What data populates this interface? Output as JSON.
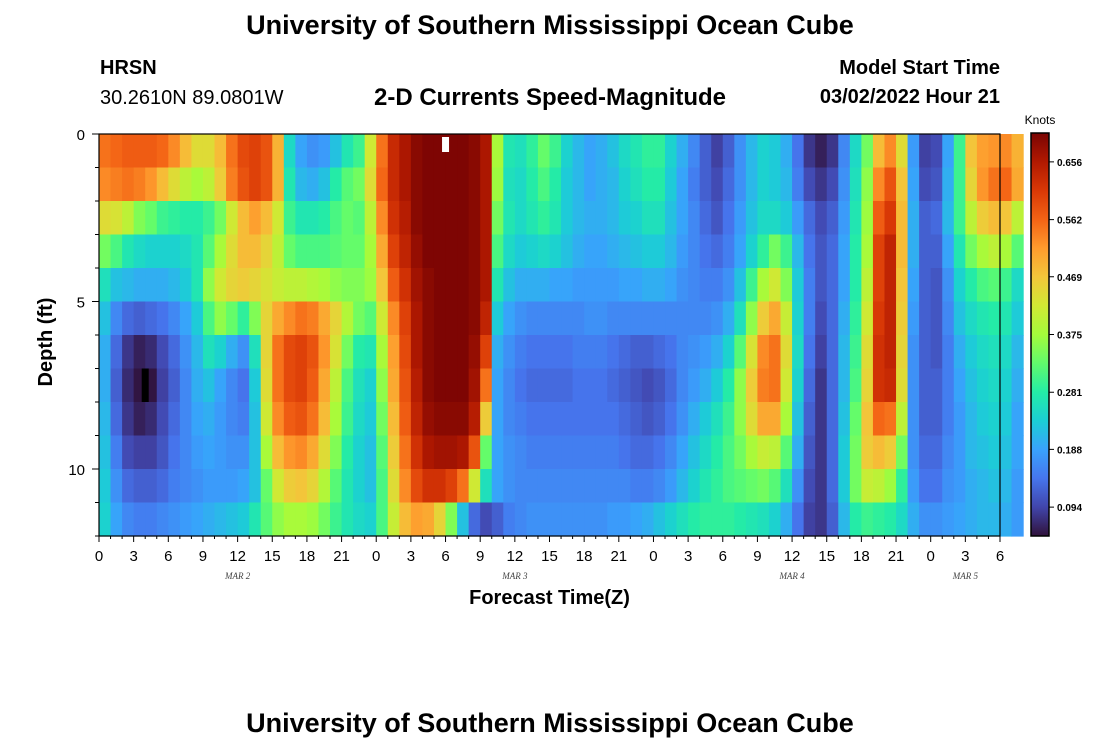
{
  "header": {
    "title": "University of Southern Mississippi Ocean Cube",
    "station": "HRSN",
    "coordinates": "30.2610N  89.0801W",
    "subtitle": "2-D Currents Speed-Magnitude",
    "model_start_label": "Model Start Time",
    "model_start_value": "03/02/2022 Hour 21"
  },
  "footer": {
    "title": "University of Southern Mississippi Ocean Cube"
  },
  "chart_data": {
    "type": "heatmap",
    "xlabel": "Forecast Time(Z)",
    "ylabel": "Depth (ft)",
    "x_tick_labels": [
      "0",
      "3",
      "6",
      "9",
      "12",
      "15",
      "18",
      "21",
      "0",
      "3",
      "6",
      "9",
      "12",
      "15",
      "18",
      "21",
      "0",
      "3",
      "6",
      "9",
      "12",
      "15",
      "18",
      "21",
      "0",
      "3",
      "6"
    ],
    "date_labels": [
      {
        "label": "MAR 2",
        "hour": 12
      },
      {
        "label": "MAR 3",
        "hour": 36
      },
      {
        "label": "MAR 4",
        "hour": 60
      },
      {
        "label": "MAR 5",
        "hour": 75
      }
    ],
    "x_range_hours": [
      0,
      78
    ],
    "y_range_ft": [
      0,
      12
    ],
    "y_ticks": [
      0,
      5,
      10
    ],
    "time_step_hours": 1,
    "depth_levels": 12,
    "colorbar": {
      "title": "Knots",
      "range": [
        0.047,
        0.703
      ],
      "tick_values": [
        0.656,
        0.562,
        0.469,
        0.375,
        0.281,
        0.188,
        0.094
      ],
      "tick_labels": [
        "0.656",
        "0.562",
        "0.469",
        "0.375",
        "0.281",
        "0.188",
        "0.094"
      ],
      "colors": [
        "#30123b",
        "#4145ab",
        "#4675ed",
        "#39a2fc",
        "#1bcfd4",
        "#24eca6",
        "#61fc6c",
        "#a4fc3b",
        "#d1e834",
        "#f3c63a",
        "#fe9b2d",
        "#f36315",
        "#d93806",
        "#b11901",
        "#7a0403"
      ]
    },
    "series_note": "current speed magnitude (knots) by forecast hour (columns) and depth (rows)",
    "speed_grid_knots": [
      [
        0.55,
        0.56,
        0.57,
        0.57,
        0.57,
        0.56,
        0.53,
        0.48,
        0.44,
        0.44,
        0.48,
        0.55,
        0.59,
        0.6,
        0.58,
        0.49,
        0.25,
        0.19,
        0.17,
        0.18,
        0.22,
        0.27,
        0.3,
        0.42,
        0.55,
        0.63,
        0.66,
        0.69,
        0.7,
        0.7,
        0.7,
        0.7,
        0.69,
        0.66,
        0.38,
        0.27,
        0.26,
        0.29,
        0.33,
        0.3,
        0.24,
        0.21,
        0.19,
        0.2,
        0.22,
        0.25,
        0.27,
        0.29,
        0.29,
        0.24,
        0.2,
        0.16,
        0.12,
        0.09,
        0.12,
        0.17,
        0.21,
        0.24,
        0.23,
        0.2,
        0.14,
        0.08,
        0.06,
        0.08,
        0.16,
        0.25,
        0.34,
        0.48,
        0.53,
        0.44,
        0.18,
        0.09,
        0.1,
        0.19,
        0.3,
        0.47,
        0.51,
        0.52,
        0.53,
        0.49
      ],
      [
        0.53,
        0.54,
        0.55,
        0.54,
        0.52,
        0.48,
        0.44,
        0.4,
        0.38,
        0.4,
        0.46,
        0.54,
        0.58,
        0.6,
        0.58,
        0.49,
        0.27,
        0.21,
        0.2,
        0.22,
        0.28,
        0.32,
        0.34,
        0.44,
        0.56,
        0.63,
        0.66,
        0.69,
        0.7,
        0.7,
        0.7,
        0.7,
        0.69,
        0.66,
        0.37,
        0.26,
        0.25,
        0.28,
        0.31,
        0.28,
        0.23,
        0.21,
        0.19,
        0.2,
        0.21,
        0.24,
        0.26,
        0.28,
        0.28,
        0.23,
        0.19,
        0.15,
        0.12,
        0.1,
        0.13,
        0.17,
        0.21,
        0.24,
        0.23,
        0.21,
        0.15,
        0.1,
        0.08,
        0.1,
        0.17,
        0.26,
        0.36,
        0.53,
        0.58,
        0.47,
        0.19,
        0.1,
        0.11,
        0.2,
        0.3,
        0.45,
        0.52,
        0.55,
        0.56,
        0.5
      ],
      [
        0.44,
        0.43,
        0.4,
        0.35,
        0.33,
        0.3,
        0.29,
        0.28,
        0.28,
        0.3,
        0.34,
        0.42,
        0.48,
        0.51,
        0.48,
        0.42,
        0.3,
        0.27,
        0.27,
        0.28,
        0.31,
        0.33,
        0.32,
        0.4,
        0.53,
        0.62,
        0.65,
        0.69,
        0.7,
        0.7,
        0.7,
        0.7,
        0.69,
        0.66,
        0.34,
        0.27,
        0.25,
        0.27,
        0.29,
        0.27,
        0.23,
        0.21,
        0.2,
        0.2,
        0.21,
        0.23,
        0.24,
        0.26,
        0.26,
        0.22,
        0.19,
        0.16,
        0.13,
        0.11,
        0.14,
        0.18,
        0.22,
        0.25,
        0.25,
        0.23,
        0.18,
        0.13,
        0.1,
        0.12,
        0.18,
        0.27,
        0.37,
        0.57,
        0.61,
        0.48,
        0.2,
        0.12,
        0.13,
        0.21,
        0.3,
        0.4,
        0.46,
        0.48,
        0.47,
        0.4
      ],
      [
        0.34,
        0.31,
        0.27,
        0.25,
        0.24,
        0.24,
        0.24,
        0.25,
        0.27,
        0.32,
        0.38,
        0.44,
        0.48,
        0.48,
        0.45,
        0.4,
        0.33,
        0.31,
        0.31,
        0.31,
        0.32,
        0.33,
        0.33,
        0.38,
        0.5,
        0.6,
        0.64,
        0.68,
        0.7,
        0.7,
        0.7,
        0.7,
        0.69,
        0.66,
        0.31,
        0.25,
        0.23,
        0.24,
        0.25,
        0.24,
        0.22,
        0.2,
        0.19,
        0.19,
        0.2,
        0.21,
        0.22,
        0.23,
        0.23,
        0.21,
        0.18,
        0.16,
        0.14,
        0.13,
        0.15,
        0.19,
        0.24,
        0.29,
        0.34,
        0.3,
        0.21,
        0.14,
        0.11,
        0.13,
        0.19,
        0.28,
        0.38,
        0.6,
        0.64,
        0.48,
        0.2,
        0.12,
        0.12,
        0.19,
        0.27,
        0.34,
        0.38,
        0.4,
        0.38,
        0.32
      ],
      [
        0.26,
        0.22,
        0.21,
        0.2,
        0.2,
        0.2,
        0.21,
        0.23,
        0.27,
        0.36,
        0.42,
        0.45,
        0.46,
        0.45,
        0.43,
        0.41,
        0.4,
        0.4,
        0.39,
        0.38,
        0.36,
        0.35,
        0.35,
        0.37,
        0.47,
        0.57,
        0.62,
        0.67,
        0.69,
        0.7,
        0.7,
        0.7,
        0.69,
        0.66,
        0.27,
        0.22,
        0.2,
        0.2,
        0.2,
        0.19,
        0.19,
        0.18,
        0.18,
        0.18,
        0.18,
        0.19,
        0.19,
        0.2,
        0.2,
        0.19,
        0.17,
        0.16,
        0.15,
        0.15,
        0.17,
        0.22,
        0.3,
        0.38,
        0.42,
        0.35,
        0.23,
        0.15,
        0.11,
        0.13,
        0.19,
        0.28,
        0.4,
        0.6,
        0.64,
        0.47,
        0.19,
        0.12,
        0.11,
        0.17,
        0.24,
        0.28,
        0.31,
        0.32,
        0.3,
        0.25
      ],
      [
        0.22,
        0.16,
        0.13,
        0.12,
        0.13,
        0.14,
        0.16,
        0.19,
        0.23,
        0.31,
        0.36,
        0.33,
        0.29,
        0.35,
        0.45,
        0.5,
        0.53,
        0.55,
        0.54,
        0.5,
        0.45,
        0.39,
        0.34,
        0.32,
        0.42,
        0.53,
        0.6,
        0.66,
        0.69,
        0.7,
        0.7,
        0.7,
        0.69,
        0.64,
        0.23,
        0.19,
        0.17,
        0.16,
        0.16,
        0.16,
        0.16,
        0.16,
        0.17,
        0.17,
        0.16,
        0.16,
        0.16,
        0.16,
        0.16,
        0.16,
        0.16,
        0.16,
        0.16,
        0.17,
        0.2,
        0.26,
        0.36,
        0.46,
        0.5,
        0.41,
        0.24,
        0.15,
        0.1,
        0.13,
        0.2,
        0.29,
        0.42,
        0.61,
        0.64,
        0.46,
        0.18,
        0.12,
        0.11,
        0.16,
        0.22,
        0.25,
        0.27,
        0.28,
        0.27,
        0.23
      ],
      [
        0.2,
        0.13,
        0.08,
        0.06,
        0.07,
        0.1,
        0.13,
        0.17,
        0.21,
        0.26,
        0.24,
        0.2,
        0.17,
        0.26,
        0.45,
        0.55,
        0.59,
        0.6,
        0.58,
        0.52,
        0.43,
        0.34,
        0.28,
        0.27,
        0.38,
        0.51,
        0.59,
        0.66,
        0.69,
        0.7,
        0.7,
        0.7,
        0.68,
        0.6,
        0.2,
        0.17,
        0.15,
        0.14,
        0.14,
        0.14,
        0.14,
        0.15,
        0.15,
        0.15,
        0.14,
        0.13,
        0.12,
        0.12,
        0.13,
        0.14,
        0.16,
        0.17,
        0.18,
        0.2,
        0.24,
        0.32,
        0.43,
        0.53,
        0.55,
        0.44,
        0.25,
        0.14,
        0.09,
        0.13,
        0.21,
        0.3,
        0.44,
        0.62,
        0.64,
        0.45,
        0.17,
        0.12,
        0.11,
        0.15,
        0.2,
        0.23,
        0.25,
        0.26,
        0.25,
        0.21
      ],
      [
        0.2,
        0.12,
        0.07,
        0.05,
        0.05,
        0.09,
        0.12,
        0.16,
        0.2,
        0.22,
        0.19,
        0.16,
        0.14,
        0.23,
        0.44,
        0.55,
        0.59,
        0.6,
        0.57,
        0.5,
        0.4,
        0.31,
        0.26,
        0.24,
        0.36,
        0.5,
        0.58,
        0.65,
        0.69,
        0.7,
        0.7,
        0.7,
        0.67,
        0.55,
        0.19,
        0.16,
        0.14,
        0.13,
        0.13,
        0.13,
        0.13,
        0.14,
        0.14,
        0.14,
        0.13,
        0.12,
        0.11,
        0.1,
        0.11,
        0.13,
        0.16,
        0.18,
        0.2,
        0.23,
        0.28,
        0.36,
        0.46,
        0.54,
        0.55,
        0.42,
        0.24,
        0.13,
        0.08,
        0.13,
        0.21,
        0.31,
        0.45,
        0.62,
        0.63,
        0.44,
        0.17,
        0.12,
        0.12,
        0.15,
        0.19,
        0.22,
        0.24,
        0.25,
        0.24,
        0.2
      ],
      [
        0.21,
        0.13,
        0.08,
        0.06,
        0.07,
        0.1,
        0.13,
        0.16,
        0.19,
        0.2,
        0.18,
        0.16,
        0.15,
        0.22,
        0.42,
        0.53,
        0.57,
        0.58,
        0.55,
        0.48,
        0.38,
        0.3,
        0.25,
        0.23,
        0.34,
        0.48,
        0.57,
        0.64,
        0.68,
        0.69,
        0.69,
        0.69,
        0.65,
        0.46,
        0.19,
        0.16,
        0.15,
        0.14,
        0.14,
        0.14,
        0.14,
        0.14,
        0.14,
        0.14,
        0.14,
        0.13,
        0.12,
        0.11,
        0.12,
        0.14,
        0.17,
        0.2,
        0.23,
        0.26,
        0.3,
        0.36,
        0.44,
        0.5,
        0.5,
        0.38,
        0.22,
        0.12,
        0.08,
        0.13,
        0.22,
        0.33,
        0.47,
        0.56,
        0.55,
        0.4,
        0.17,
        0.12,
        0.12,
        0.15,
        0.18,
        0.21,
        0.23,
        0.24,
        0.23,
        0.19
      ],
      [
        0.22,
        0.15,
        0.1,
        0.09,
        0.09,
        0.11,
        0.14,
        0.16,
        0.18,
        0.19,
        0.18,
        0.17,
        0.17,
        0.22,
        0.38,
        0.48,
        0.52,
        0.53,
        0.5,
        0.44,
        0.35,
        0.28,
        0.24,
        0.22,
        0.32,
        0.46,
        0.55,
        0.62,
        0.66,
        0.67,
        0.67,
        0.66,
        0.58,
        0.33,
        0.19,
        0.17,
        0.16,
        0.15,
        0.15,
        0.15,
        0.15,
        0.15,
        0.15,
        0.15,
        0.15,
        0.14,
        0.13,
        0.13,
        0.14,
        0.16,
        0.19,
        0.22,
        0.25,
        0.28,
        0.31,
        0.34,
        0.38,
        0.41,
        0.4,
        0.32,
        0.2,
        0.11,
        0.08,
        0.13,
        0.23,
        0.34,
        0.46,
        0.48,
        0.46,
        0.34,
        0.17,
        0.13,
        0.13,
        0.16,
        0.18,
        0.21,
        0.22,
        0.23,
        0.22,
        0.19
      ],
      [
        0.23,
        0.17,
        0.13,
        0.12,
        0.12,
        0.13,
        0.15,
        0.16,
        0.17,
        0.18,
        0.18,
        0.18,
        0.19,
        0.22,
        0.33,
        0.42,
        0.46,
        0.47,
        0.45,
        0.39,
        0.32,
        0.27,
        0.24,
        0.22,
        0.31,
        0.44,
        0.53,
        0.59,
        0.62,
        0.62,
        0.6,
        0.55,
        0.42,
        0.26,
        0.19,
        0.17,
        0.16,
        0.16,
        0.16,
        0.16,
        0.16,
        0.16,
        0.16,
        0.16,
        0.16,
        0.16,
        0.15,
        0.15,
        0.16,
        0.18,
        0.21,
        0.24,
        0.27,
        0.29,
        0.31,
        0.32,
        0.33,
        0.34,
        0.32,
        0.26,
        0.17,
        0.1,
        0.08,
        0.13,
        0.23,
        0.34,
        0.41,
        0.4,
        0.37,
        0.29,
        0.18,
        0.14,
        0.14,
        0.17,
        0.18,
        0.2,
        0.21,
        0.22,
        0.21,
        0.18
      ],
      [
        0.24,
        0.19,
        0.16,
        0.15,
        0.15,
        0.16,
        0.17,
        0.18,
        0.19,
        0.2,
        0.21,
        0.22,
        0.23,
        0.27,
        0.32,
        0.36,
        0.38,
        0.38,
        0.37,
        0.34,
        0.3,
        0.27,
        0.25,
        0.24,
        0.31,
        0.41,
        0.48,
        0.51,
        0.5,
        0.45,
        0.35,
        0.22,
        0.13,
        0.1,
        0.12,
        0.15,
        0.16,
        0.17,
        0.17,
        0.17,
        0.17,
        0.17,
        0.17,
        0.17,
        0.18,
        0.18,
        0.19,
        0.2,
        0.22,
        0.24,
        0.26,
        0.28,
        0.29,
        0.29,
        0.29,
        0.28,
        0.27,
        0.26,
        0.24,
        0.2,
        0.14,
        0.09,
        0.08,
        0.12,
        0.21,
        0.28,
        0.3,
        0.29,
        0.28,
        0.25,
        0.2,
        0.17,
        0.17,
        0.18,
        0.19,
        0.2,
        0.21,
        0.21,
        0.2,
        0.18
      ]
    ],
    "missing_cells": [
      {
        "hour": 30,
        "depth_index": 0,
        "color": "#ffffff"
      },
      {
        "hour": 4,
        "depth_index": 7,
        "color": "#000000"
      }
    ]
  }
}
